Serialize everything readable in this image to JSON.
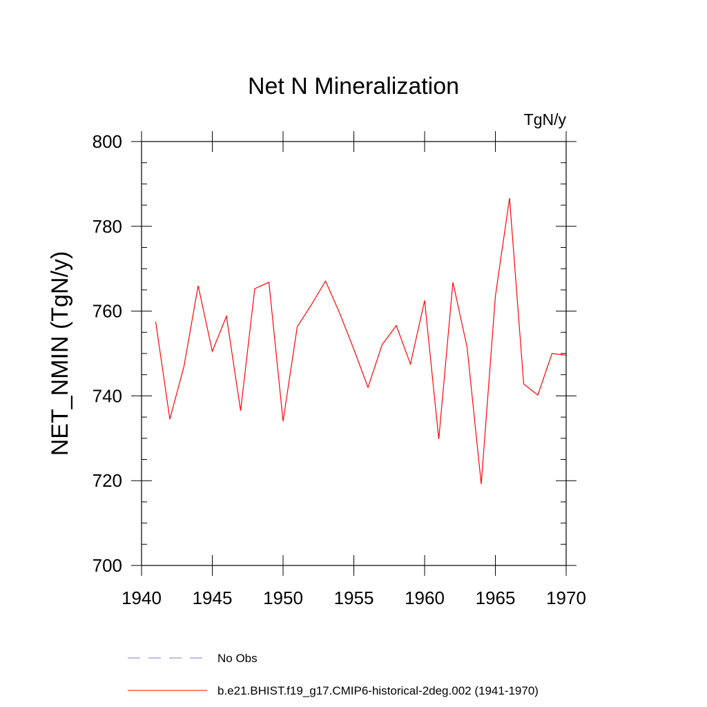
{
  "chart_data": {
    "type": "line",
    "title": "Net N Mineralization",
    "units_label": "TgN/y",
    "ylabel": "NET_NMIN  (TgN/y)",
    "xlabel": "",
    "xlim": [
      1940,
      1970
    ],
    "ylim": [
      700,
      800
    ],
    "x_ticks": [
      1940,
      1945,
      1950,
      1955,
      1960,
      1965,
      1970
    ],
    "y_ticks": [
      700,
      720,
      740,
      760,
      780,
      800
    ],
    "grid": false,
    "legend_position": "bottom",
    "series": [
      {
        "name": "b.e21.BHIST.f19_g17.CMIP6-historical-2deg.002 (1941-1970)",
        "color": "#ff0000",
        "style": "solid",
        "x": [
          1941,
          1942,
          1943,
          1944,
          1945,
          1946,
          1947,
          1948,
          1949,
          1950,
          1951,
          1952,
          1953,
          1954,
          1955,
          1956,
          1957,
          1958,
          1959,
          1960,
          1961,
          1962,
          1963,
          1964,
          1965,
          1966,
          1967,
          1968,
          1969,
          1970
        ],
        "y": [
          757.5,
          734.5,
          747,
          766,
          750.5,
          758.8,
          736.5,
          765.3,
          766.8,
          734,
          756.3,
          761.5,
          767.1,
          759.5,
          751,
          742,
          752.1,
          756.6,
          747.5,
          762.5,
          729.8,
          766.8,
          751.5,
          719.2,
          763.5,
          786.7,
          742.8,
          740.2,
          750,
          749.6
        ]
      }
    ],
    "legend": [
      {
        "label": "No Obs",
        "color": "#7b7bd6",
        "style": "dashed"
      },
      {
        "label": "b.e21.BHIST.f19_g17.CMIP6-historical-2deg.002 (1941-1970)",
        "color": "#ff0000",
        "style": "solid"
      }
    ]
  }
}
